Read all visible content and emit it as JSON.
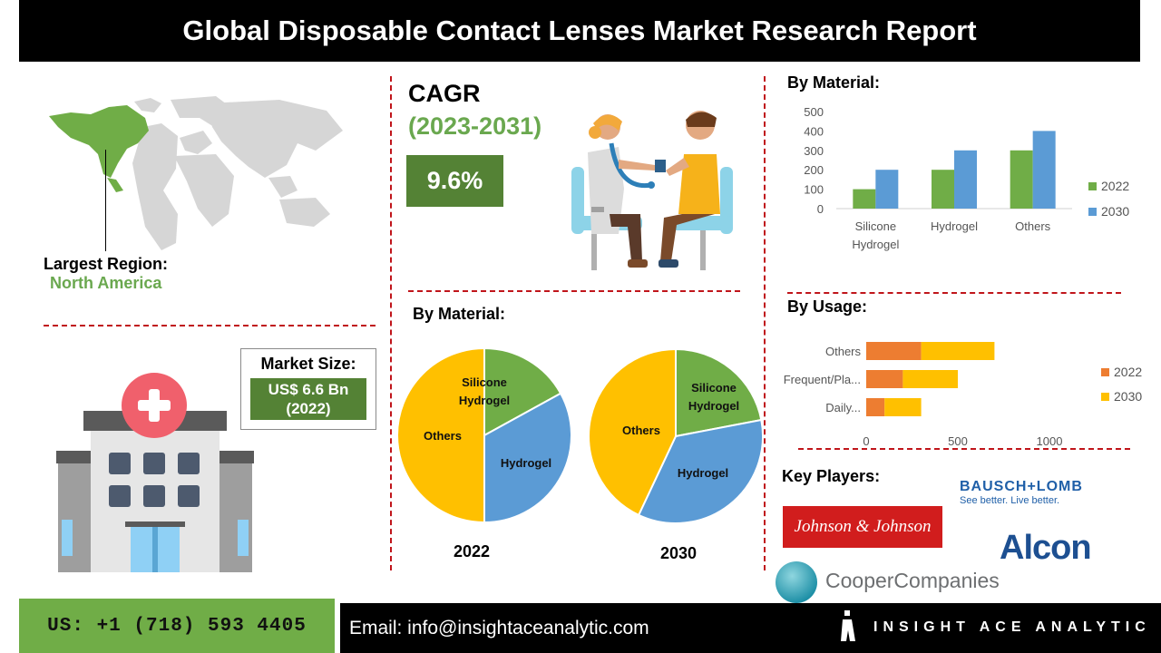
{
  "header": {
    "title": "Global Disposable Contact Lenses Market Research Report"
  },
  "region": {
    "label": "Largest Region:",
    "value": "North America"
  },
  "market_size": {
    "label": "Market Size:",
    "value_line1": "US$ 6.6 Bn",
    "value_line2": "(2022)"
  },
  "cagr": {
    "label": "CAGR",
    "period": "(2023-2031)",
    "value": "9.6%"
  },
  "pies": {
    "heading": "By Material:",
    "year_2022": "2022",
    "year_2030": "2030",
    "labels": {
      "silicone_line1": "Silicone",
      "silicone_line2": "Hydrogel",
      "hydrogel": "Hydrogel",
      "others": "Others"
    }
  },
  "material_chart_heading": "By Material:",
  "usage_chart_heading": "By Usage:",
  "key_players": {
    "heading": "Key Players:",
    "jnj": "Johnson & Johnson",
    "bausch_main": "BAUSCH+LOMB",
    "bausch_tag": "See better. Live better.",
    "alcon": "Alcon",
    "cooper": "CooperCompanies"
  },
  "footer": {
    "phone": "US: +1 (718) 593 4405",
    "email": "Email: info@insightaceanalytic.com",
    "brand": "INSIGHT ACE ANALYTIC"
  },
  "colors": {
    "series_2022_bar": "#70ad47",
    "series_2030_bar": "#5b9bd5",
    "usage_2022": "#ed7d31",
    "usage_2030": "#ffc000",
    "accent_red": "#c0151b"
  },
  "chart_data": [
    {
      "type": "bar",
      "title": "By Material:",
      "categories": [
        "Silicone Hydrogel",
        "Hydrogel",
        "Others"
      ],
      "series": [
        {
          "name": "2022",
          "values": [
            100,
            200,
            300
          ]
        },
        {
          "name": "2030",
          "values": [
            200,
            300,
            400
          ]
        }
      ],
      "ylim": [
        0,
        500
      ],
      "yticks": [
        "0",
        "100",
        "200",
        "300",
        "400",
        "500"
      ],
      "legend": "right"
    },
    {
      "type": "bar",
      "orientation": "horizontal",
      "stacked": true,
      "title": "By Usage:",
      "categories": [
        "Others",
        "Frequent/Pla...",
        "Daily..."
      ],
      "series": [
        {
          "name": "2022",
          "values": [
            300,
            200,
            100
          ]
        },
        {
          "name": "2030",
          "values": [
            400,
            300,
            200
          ]
        }
      ],
      "xlim": [
        0,
        1000
      ],
      "xticks": [
        "0",
        "500",
        "1000"
      ],
      "legend": "right"
    },
    {
      "type": "pie",
      "title": "2022",
      "slices": [
        {
          "label": "Silicone Hydrogel",
          "value": 17
        },
        {
          "label": "Hydrogel",
          "value": 33
        },
        {
          "label": "Others",
          "value": 50
        }
      ]
    },
    {
      "type": "pie",
      "title": "2030",
      "slices": [
        {
          "label": "Silicone Hydrogel",
          "value": 22
        },
        {
          "label": "Hydrogel",
          "value": 35
        },
        {
          "label": "Others",
          "value": 43
        }
      ]
    }
  ]
}
